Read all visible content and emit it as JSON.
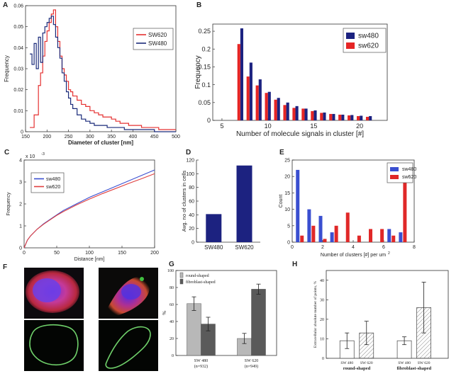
{
  "panels": {
    "A": "A",
    "B": "B",
    "C": "C",
    "D": "D",
    "E": "E",
    "F": "F",
    "G": "G",
    "H": "H"
  },
  "chart_data": [
    {
      "panel": "A",
      "type": "line",
      "xlabel": "Diameter of cluster [nm]",
      "ylabel": "Frequency",
      "xlim": [
        150,
        500
      ],
      "ylim": [
        0,
        0.06
      ],
      "xticks": [
        150,
        200,
        250,
        300,
        350,
        400,
        450,
        500
      ],
      "yticks": [
        0,
        0.01,
        0.02,
        0.03,
        0.04,
        0.05,
        0.06
      ],
      "legend_position": "top-right",
      "series": [
        {
          "name": "SW620",
          "color": "#e53030",
          "x": [
            160,
            170,
            180,
            185,
            190,
            195,
            200,
            205,
            210,
            215,
            220,
            225,
            230,
            235,
            240,
            245,
            250,
            255,
            260,
            270,
            280,
            290,
            300,
            310,
            320,
            330,
            340,
            350,
            360,
            370,
            380,
            390,
            400,
            420,
            440,
            460,
            480,
            500
          ],
          "y": [
            0.002,
            0.008,
            0.022,
            0.028,
            0.036,
            0.043,
            0.048,
            0.052,
            0.056,
            0.058,
            0.05,
            0.043,
            0.036,
            0.03,
            0.027,
            0.024,
            0.02,
            0.019,
            0.017,
            0.015,
            0.013,
            0.012,
            0.01,
            0.009,
            0.008,
            0.007,
            0.007,
            0.006,
            0.005,
            0.004,
            0.004,
            0.003,
            0.003,
            0.002,
            0.002,
            0.001,
            0.001,
            0.001
          ]
        },
        {
          "name": "SW480",
          "color": "#1a2a7a",
          "x": [
            160,
            165,
            170,
            175,
            180,
            185,
            190,
            195,
            200,
            205,
            210,
            215,
            220,
            225,
            230,
            235,
            240,
            245,
            250,
            255,
            260,
            270,
            280,
            290,
            300,
            310,
            320,
            340,
            360,
            380,
            400,
            450,
            500
          ],
          "y": [
            0.037,
            0.032,
            0.042,
            0.03,
            0.045,
            0.033,
            0.047,
            0.05,
            0.052,
            0.054,
            0.055,
            0.051,
            0.045,
            0.04,
            0.035,
            0.028,
            0.024,
            0.019,
            0.016,
            0.013,
            0.011,
            0.008,
            0.006,
            0.005,
            0.004,
            0.003,
            0.003,
            0.002,
            0.002,
            0.001,
            0.001,
            0,
            0
          ]
        }
      ]
    },
    {
      "panel": "B",
      "type": "bar",
      "xlabel": "Number of molecule signals in cluster [#]",
      "ylabel": "Frequency",
      "xlim": [
        4,
        23
      ],
      "ylim": [
        0,
        0.27
      ],
      "xticks": [
        5,
        10,
        15,
        20
      ],
      "yticks": [
        0,
        0.05,
        0.1,
        0.15,
        0.2,
        0.25
      ],
      "legend_position": "top-right",
      "x": [
        7,
        8,
        9,
        10,
        11,
        12,
        13,
        14,
        15,
        16,
        17,
        18,
        19,
        20,
        21
      ],
      "series": [
        {
          "name": "sw480",
          "color": "#1c2280",
          "values": [
            0.258,
            0.162,
            0.115,
            0.08,
            0.063,
            0.05,
            0.04,
            0.033,
            0.028,
            0.022,
            0.018,
            0.016,
            0.015,
            0.013,
            0.012
          ]
        },
        {
          "name": "sw620",
          "color": "#e52525",
          "values": [
            0.214,
            0.123,
            0.098,
            0.077,
            0.058,
            0.043,
            0.035,
            0.033,
            0.026,
            0.021,
            0.018,
            0.016,
            0.014,
            0.012,
            0.01
          ]
        }
      ]
    },
    {
      "panel": "C",
      "type": "line",
      "xlabel": "Distance [nm]",
      "ylabel": "Frequency",
      "exponent_label": "x 10",
      "exponent_power": "-3",
      "xlim": [
        0,
        200
      ],
      "ylim": [
        0,
        4
      ],
      "xticks": [
        0,
        50,
        100,
        150,
        200
      ],
      "yticks": [
        0,
        1,
        2,
        3,
        4
      ],
      "legend_position": "top-left",
      "series": [
        {
          "name": "sw480",
          "color": "#3a4fd0",
          "x": [
            0,
            5,
            10,
            20,
            30,
            40,
            50,
            60,
            80,
            100,
            120,
            140,
            160,
            180,
            200
          ],
          "y": [
            0,
            0.35,
            0.55,
            0.85,
            1.1,
            1.3,
            1.5,
            1.7,
            2.0,
            2.3,
            2.55,
            2.8,
            3.05,
            3.3,
            3.55
          ]
        },
        {
          "name": "sw620",
          "color": "#e04040",
          "x": [
            0,
            5,
            10,
            20,
            30,
            40,
            50,
            60,
            80,
            100,
            120,
            140,
            160,
            180,
            200
          ],
          "y": [
            0,
            0.35,
            0.55,
            0.85,
            1.08,
            1.28,
            1.48,
            1.65,
            1.95,
            2.22,
            2.47,
            2.7,
            2.93,
            3.15,
            3.38
          ]
        }
      ]
    },
    {
      "panel": "D",
      "type": "bar",
      "ylabel": "Avg. no of clusters in cells",
      "ylim": [
        0,
        120
      ],
      "yticks": [
        0,
        20,
        40,
        60,
        80,
        100,
        120
      ],
      "categories": [
        "SW480",
        "SW620"
      ],
      "values": [
        41,
        112
      ],
      "color": "#1c2280"
    },
    {
      "panel": "E",
      "type": "bar",
      "xlabel": "Number of clusters [#] per um",
      "xlabel_superscript": "2",
      "ylabel": "Count",
      "xlim": [
        0,
        8
      ],
      "ylim": [
        0,
        25
      ],
      "xticks": [
        0,
        2,
        4,
        6,
        8
      ],
      "yticks": [
        0,
        5,
        10,
        15,
        20,
        25
      ],
      "legend_position": "top-right",
      "x": [
        0.5,
        1.25,
        2.0,
        2.75,
        3.5,
        4.25,
        5.0,
        5.75,
        6.5,
        7.25
      ],
      "series": [
        {
          "name": "sw480",
          "color": "#3a4fd0",
          "values": [
            22,
            10,
            8,
            3,
            0,
            0,
            0,
            0,
            4,
            3
          ]
        },
        {
          "name": "sw620",
          "color": "#e02828",
          "values": [
            2,
            5,
            1,
            5,
            9,
            2,
            4,
            4,
            2,
            19
          ]
        }
      ]
    },
    {
      "panel": "G",
      "type": "bar",
      "ylabel": "%",
      "ylim": [
        0,
        100
      ],
      "yticks": [
        0,
        20,
        40,
        60,
        80,
        100
      ],
      "categories": [
        "SW 480\n(n=932)",
        "SW 620\n(n=949)"
      ],
      "category_lines": [
        [
          "SW 480",
          "(n=932)"
        ],
        [
          "SW 620",
          "(n=949)"
        ]
      ],
      "legend_position": "top-left",
      "series": [
        {
          "name": "round-shaped",
          "color": "#b8b8b8",
          "values": [
            61,
            20
          ],
          "errors": [
            8,
            6
          ]
        },
        {
          "name": "fibroblast-shaped",
          "color": "#5a5a5a",
          "values": [
            37,
            78
          ],
          "errors": [
            8,
            6
          ]
        }
      ]
    },
    {
      "panel": "H",
      "type": "bar",
      "ylabel": "Extracellular absolute number of points, %",
      "ylim": [
        0,
        45
      ],
      "yticks": [
        0,
        10,
        20,
        30,
        40
      ],
      "groups": [
        "round-shaped",
        "fibroblast-shaped"
      ],
      "categories": [
        "SW 480",
        "SW 620",
        "SW 480",
        "SW 620"
      ],
      "values": [
        9,
        13,
        9,
        26
      ],
      "errors": [
        4,
        6,
        2,
        13
      ],
      "fills": [
        "plain",
        "hatched",
        "plain",
        "hatched"
      ]
    }
  ]
}
